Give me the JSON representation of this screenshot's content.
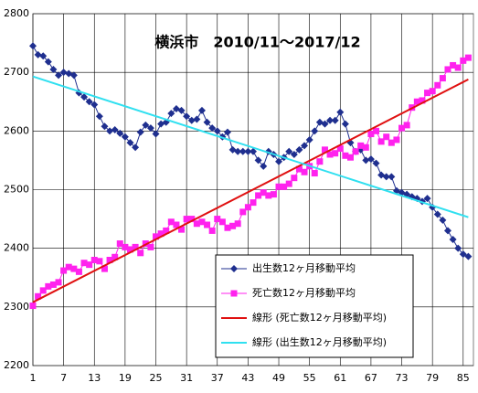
{
  "chart_data": {
    "type": "line",
    "title": "横浜市　2010/11～2017/12",
    "xticks": [
      1,
      7,
      13,
      19,
      25,
      31,
      37,
      43,
      49,
      55,
      61,
      67,
      73,
      79,
      85
    ],
    "xlim": [
      1,
      87
    ],
    "ylim": [
      2200,
      2800
    ],
    "yticks": [
      2200,
      2300,
      2400,
      2500,
      2600,
      2700,
      2800
    ],
    "grid": true,
    "legend": "bottom-right",
    "series": [
      {
        "name": "出生数12ヶ月移動平均",
        "color": "#1f2f8f",
        "marker": "diamond",
        "values": [
          2745,
          2730,
          2728,
          2718,
          2705,
          2695,
          2700,
          2698,
          2695,
          2665,
          2658,
          2650,
          2645,
          2625,
          2608,
          2600,
          2602,
          2596,
          2590,
          2580,
          2572,
          2598,
          2610,
          2605,
          2595,
          2612,
          2615,
          2630,
          2638,
          2635,
          2625,
          2618,
          2620,
          2635,
          2615,
          2605,
          2600,
          2590,
          2598,
          2568,
          2565,
          2565,
          2565,
          2565,
          2550,
          2540,
          2565,
          2560,
          2548,
          2555,
          2565,
          2560,
          2568,
          2575,
          2585,
          2600,
          2615,
          2612,
          2618,
          2618,
          2632,
          2612,
          2580,
          2565,
          2568,
          2550,
          2552,
          2545,
          2525,
          2522,
          2522,
          2498,
          2495,
          2492,
          2488,
          2485,
          2480,
          2485,
          2470,
          2458,
          2448,
          2430,
          2415,
          2400,
          2390,
          2386
        ]
      },
      {
        "name": "死亡数12ヶ月移動平均",
        "color": "#ff22ee",
        "marker": "square",
        "values": [
          2302,
          2318,
          2328,
          2335,
          2338,
          2342,
          2362,
          2368,
          2365,
          2360,
          2375,
          2372,
          2380,
          2378,
          2365,
          2380,
          2385,
          2408,
          2402,
          2398,
          2402,
          2392,
          2408,
          2402,
          2420,
          2425,
          2430,
          2445,
          2440,
          2432,
          2450,
          2450,
          2442,
          2445,
          2440,
          2430,
          2450,
          2445,
          2435,
          2438,
          2442,
          2462,
          2470,
          2478,
          2490,
          2495,
          2490,
          2492,
          2505,
          2505,
          2510,
          2520,
          2535,
          2530,
          2540,
          2528,
          2548,
          2568,
          2560,
          2562,
          2570,
          2558,
          2555,
          2565,
          2575,
          2572,
          2595,
          2600,
          2582,
          2590,
          2580,
          2585,
          2605,
          2610,
          2640,
          2650,
          2652,
          2665,
          2668,
          2678,
          2690,
          2705,
          2712,
          2708,
          2720,
          2725
        ]
      },
      {
        "name": "線形 (死亡数12ヶ月移動平均)",
        "color": "#e01010",
        "x": [
          1,
          86
        ],
        "values": [
          2308,
          2688
        ]
      },
      {
        "name": "線形 (出生数12ヶ月移動平均)",
        "color": "#30e0f0",
        "x": [
          1,
          86
        ],
        "values": [
          2693,
          2453
        ]
      }
    ]
  }
}
